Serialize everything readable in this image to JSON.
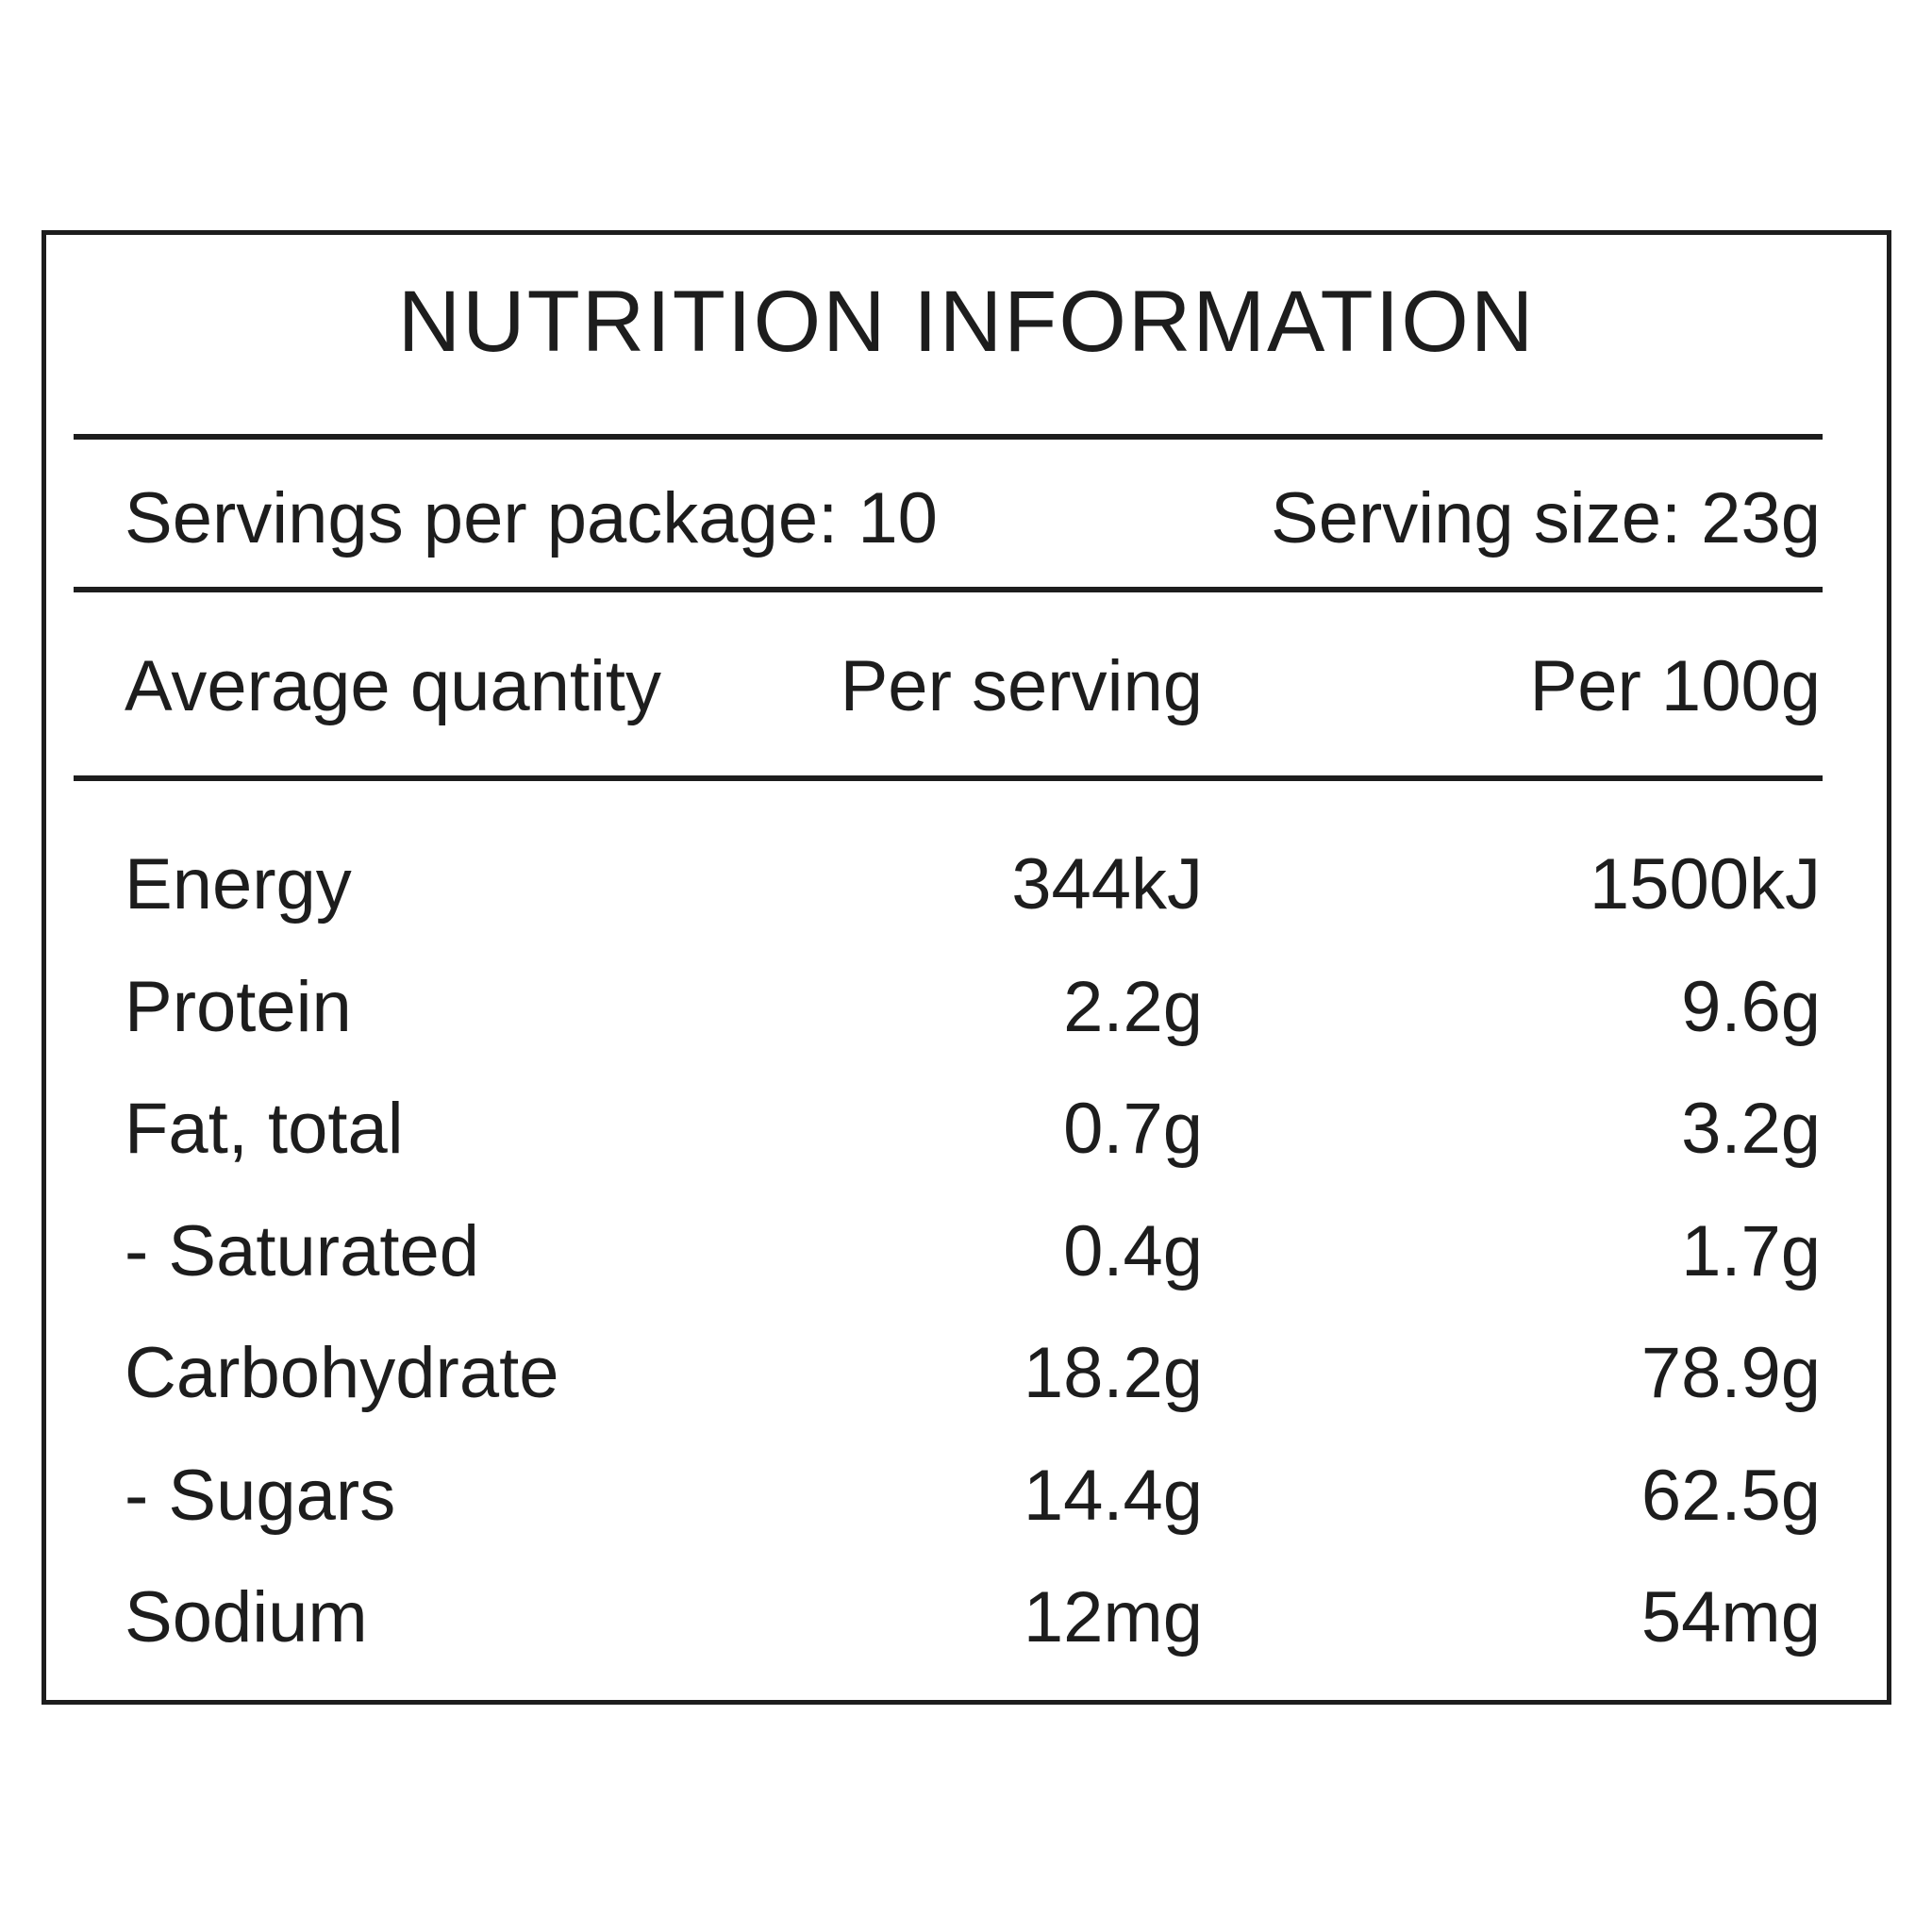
{
  "panel": {
    "title": "NUTRITION INFORMATION",
    "servings_line": {
      "servings_per_package": "Servings per package: 10",
      "serving_size": "Serving size: 23g"
    },
    "columns": {
      "quantity": "Average quantity",
      "per_serving": "Per serving",
      "per_100g": "Per 100g"
    },
    "rows": [
      {
        "nutrient": "Energy",
        "per_serving": "344kJ",
        "per_100g": "1500kJ"
      },
      {
        "nutrient": "Protein",
        "per_serving": "2.2g",
        "per_100g": "9.6g"
      },
      {
        "nutrient": "Fat, total",
        "per_serving": "0.7g",
        "per_100g": "3.2g"
      },
      {
        "nutrient": "- Saturated",
        "per_serving": "0.4g",
        "per_100g": "1.7g"
      },
      {
        "nutrient": "Carbohydrate",
        "per_serving": "18.2g",
        "per_100g": "78.9g"
      },
      {
        "nutrient": "- Sugars",
        "per_serving": "14.4g",
        "per_100g": "62.5g"
      },
      {
        "nutrient": "Sodium",
        "per_serving": "12mg",
        "per_100g": "54mg"
      }
    ],
    "colors": {
      "ink": "#1d1d1d",
      "background": "#ffffff"
    }
  }
}
